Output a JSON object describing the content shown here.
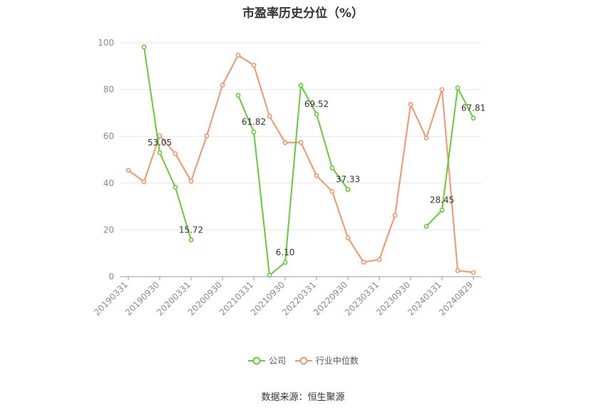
{
  "chart_data": {
    "type": "line",
    "title": "市盈率历史分位（%）",
    "x": [
      "20190331",
      "20190630",
      "20190930",
      "20191231",
      "20200331",
      "20200630",
      "20200930",
      "20201231",
      "20210331",
      "20210630",
      "20210930",
      "20211231",
      "20220331",
      "20220630",
      "20220930",
      "20221231",
      "20230331",
      "20230630",
      "20230930",
      "20231231",
      "20240331",
      "20240630",
      "20240829"
    ],
    "x_tick_labels": [
      "20190331",
      "20190930",
      "20200331",
      "20200930",
      "20210331",
      "20210930",
      "20220331",
      "20220930",
      "20230331",
      "20230930",
      "20240331",
      "20240829"
    ],
    "ylim": [
      0,
      100
    ],
    "y_ticks": [
      0,
      20,
      40,
      60,
      80,
      100
    ],
    "grid": true,
    "legend_position": "bottom",
    "series": [
      {
        "name": "公司",
        "color": "#66cc33",
        "values": [
          null,
          98.2,
          53.05,
          38.2,
          15.72,
          null,
          null,
          77.5,
          61.82,
          0.6,
          6.1,
          81.8,
          69.52,
          46.5,
          37.33,
          null,
          null,
          null,
          null,
          21.5,
          28.45,
          80.7,
          67.81
        ],
        "labels": [
          null,
          null,
          "53.05",
          null,
          "15.72",
          null,
          null,
          null,
          "61.82",
          null,
          "6.10",
          null,
          "69.52",
          null,
          "37.33",
          null,
          null,
          null,
          null,
          null,
          "28.45",
          null,
          "67.81"
        ]
      },
      {
        "name": "行业中位数",
        "color": "#f4956a",
        "values": [
          45.5,
          40.6,
          60.3,
          52.6,
          40.8,
          60.2,
          81.9,
          94.7,
          90.4,
          68.6,
          57.3,
          57.4,
          43.2,
          36.4,
          16.6,
          6.2,
          7.3,
          26.2,
          73.7,
          59.3,
          80.0,
          2.6,
          1.8
        ]
      }
    ]
  },
  "source_text": "数据来源：恒生聚源"
}
